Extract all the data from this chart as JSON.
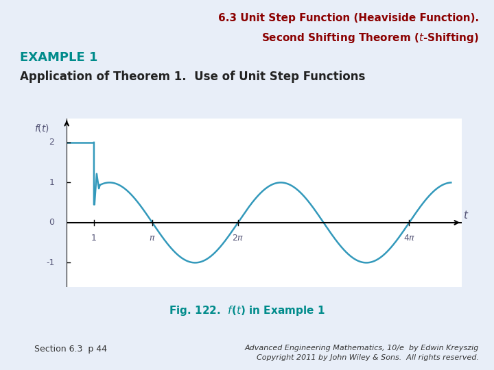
{
  "title_line1": "6.3 Unit Step Function (Heaviside Function).",
  "title_line2": "Second Shifting Theorem ($t$-Shifting)",
  "example_label": "EXAMPLE 1",
  "subtitle": "Application of Theorem 1.  Use of Unit Step Functions",
  "fig_caption": "Fig. 122.  $f$($t$) in Example 1",
  "section_text": "Section 6.3  p 44",
  "copyright_text": "Advanced Engineering Mathematics, 10/e  by Edwin Kreyszig\nCopyright 2011 by John Wiley & Sons.  All rights reserved.",
  "title_color": "#8B0000",
  "example_color": "#008B8B",
  "fig_caption_color": "#008B8B",
  "panel_bg_color": "#C8D8F0",
  "plot_bg_color": "#FFFFFF",
  "curve_color": "#3399BB",
  "tick_label_color": "#555577",
  "fig_bg_color": "#E8EEF8",
  "yticks": [
    -1,
    1,
    2
  ],
  "xmin": 0,
  "xmax": 14.5,
  "ymin": -1.6,
  "ymax": 2.6
}
